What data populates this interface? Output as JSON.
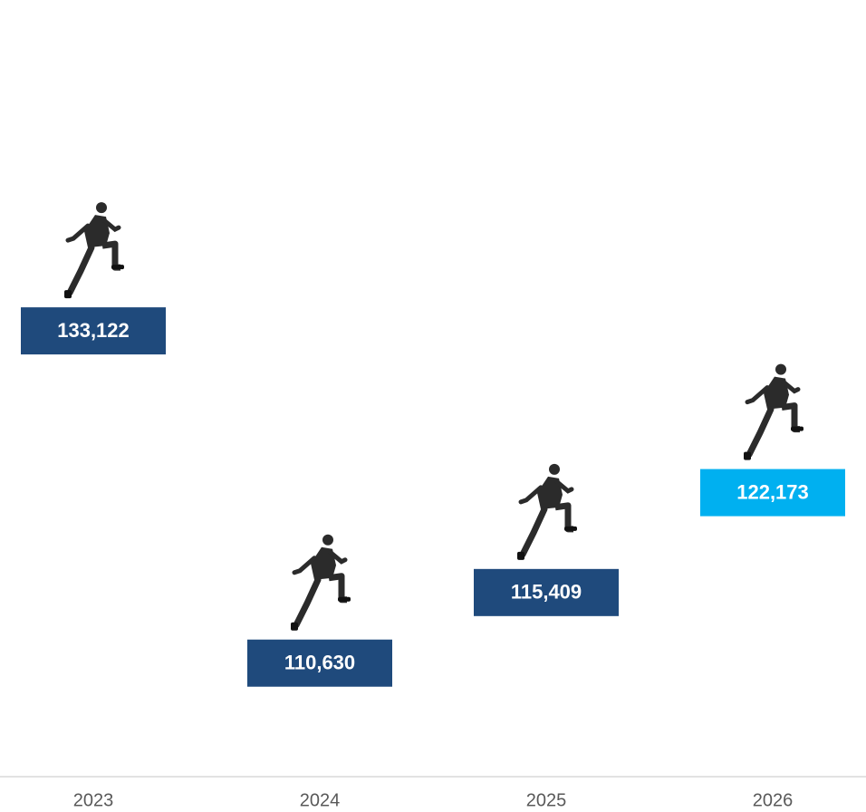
{
  "chart_data": {
    "type": "pictorial-step",
    "categories": [
      "2023",
      "2024",
      "2025",
      "2026"
    ],
    "values": [
      133122,
      110630,
      115409,
      122173
    ],
    "value_labels": [
      "133,122",
      "110,630",
      "115,409",
      "122,173"
    ],
    "colors": [
      "#1f4a7c",
      "#1f4a7c",
      "#1f4a7c",
      "#00b0f0"
    ],
    "ylim": [
      100000,
      140000
    ]
  }
}
